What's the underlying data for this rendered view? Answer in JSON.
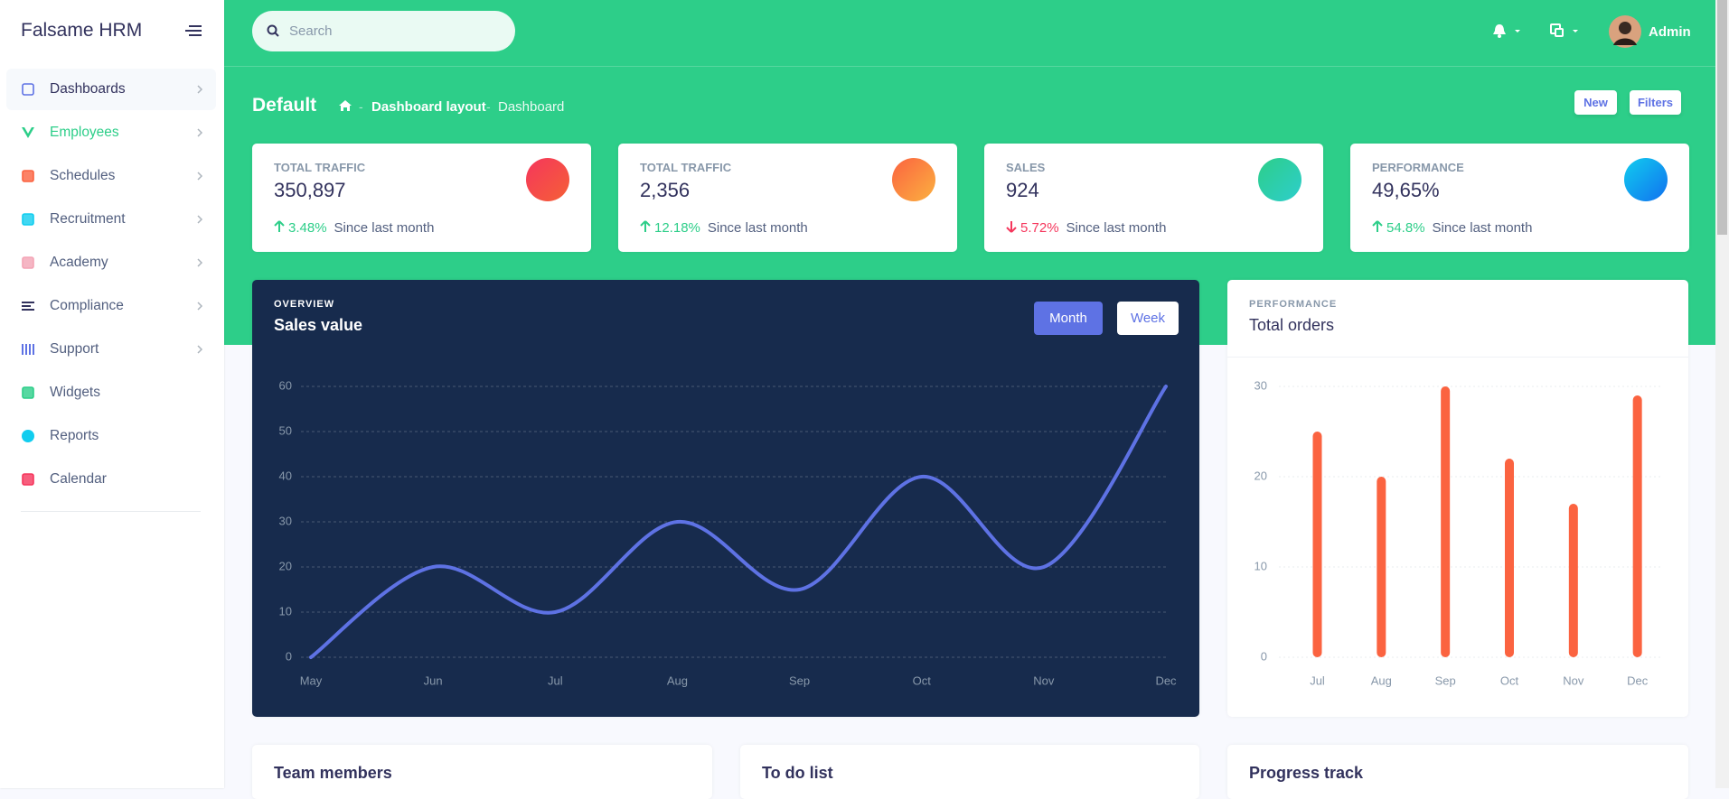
{
  "sidebar": {
    "brand": "Falsame HRM",
    "nav": [
      "Dashboards",
      "Employees",
      "Schedules",
      "Recruitment",
      "Academy",
      "Compliance",
      "Support",
      "Widgets",
      "Reports",
      "Calendar"
    ]
  },
  "header": {
    "search_placeholder": "Search",
    "user": "Admin"
  },
  "page": {
    "title": "Default",
    "breadcrumb": [
      "Dashboard layout",
      "Dashboard"
    ],
    "buttons": [
      "New",
      "Filters"
    ]
  },
  "stats": [
    {
      "label": "TOTAL TRAFFIC",
      "value": "350,897",
      "change": "3.48%",
      "trend": "up",
      "since": "Since last month"
    },
    {
      "label": "TOTAL TRAFFIC",
      "value": "2,356",
      "change": "12.18%",
      "trend": "up",
      "since": "Since last month"
    },
    {
      "label": "SALES",
      "value": "924",
      "change": "5.72%",
      "trend": "down",
      "since": "Since last month"
    },
    {
      "label": "PERFORMANCE",
      "value": "49,65%",
      "change": "54.8%",
      "trend": "up",
      "since": "Since last month"
    }
  ],
  "sales_buttons": [
    "Month",
    "Week"
  ],
  "chart_data": [
    {
      "type": "line",
      "subtitle": "OVERVIEW",
      "title": "Sales value",
      "categories": [
        "May",
        "Jun",
        "Jul",
        "Aug",
        "Sep",
        "Oct",
        "Nov",
        "Dec"
      ],
      "series": [
        {
          "name": "Sales",
          "color": "#5e72e4",
          "values": [
            0,
            20,
            10,
            30,
            15,
            40,
            20,
            60
          ]
        }
      ],
      "ylim": [
        0,
        60
      ],
      "yticks": [
        0,
        10,
        20,
        30,
        40,
        50,
        60
      ],
      "grid": true
    },
    {
      "type": "bar",
      "subtitle": "PERFORMANCE",
      "title": "Total orders",
      "categories": [
        "Jul",
        "Aug",
        "Sep",
        "Oct",
        "Nov",
        "Dec"
      ],
      "series": [
        {
          "name": "Orders",
          "color": "#fb6340",
          "values": [
            25,
            20,
            30,
            22,
            17,
            29
          ]
        }
      ],
      "ylim": [
        0,
        30
      ],
      "yticks": [
        0,
        10,
        20,
        30
      ],
      "grid": true
    }
  ],
  "bottom_cards": [
    "Team members",
    "To do list",
    "Progress track"
  ]
}
